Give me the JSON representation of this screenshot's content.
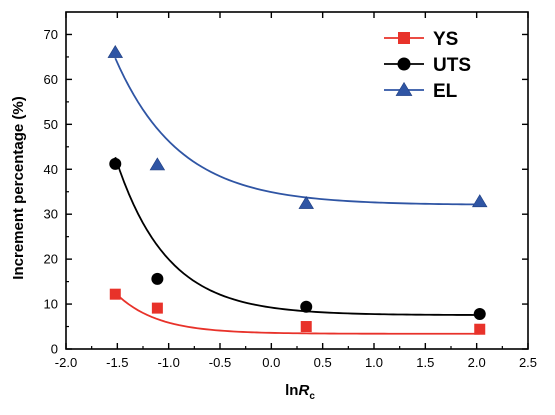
{
  "chart_data": {
    "type": "scatter",
    "title": "",
    "xlabel": {
      "prefix": "ln",
      "main": "R",
      "sub": "c"
    },
    "ylabel": "Increment percentage (%)",
    "xlim": [
      -2.0,
      2.5
    ],
    "ylim": [
      0,
      75
    ],
    "x_ticks": [
      "-2.0",
      "-1.5",
      "-1.0",
      "-0.5",
      "0.0",
      "0.5",
      "1.0",
      "1.5",
      "2.0",
      "2.5"
    ],
    "y_ticks": [
      "0",
      "10",
      "20",
      "30",
      "40",
      "50",
      "60",
      "70"
    ],
    "grid": false,
    "legend_position": "top-right",
    "series": [
      {
        "name": "YS",
        "color": "#e8322a",
        "marker": "square",
        "x": [
          -1.52,
          -1.11,
          0.34,
          2.03
        ],
        "y": [
          12.2,
          9.1,
          5.0,
          4.4
        ],
        "fit": [
          9.1,
          2.5,
          3.39
        ]
      },
      {
        "name": "UTS",
        "color": "#000000",
        "marker": "circle",
        "x": [
          -1.52,
          -1.11,
          0.34,
          2.03
        ],
        "y": [
          41.2,
          15.6,
          9.4,
          7.8
        ],
        "fit": [
          35.14,
          2.0,
          7.54
        ]
      },
      {
        "name": "EL",
        "color": "#2f55a4",
        "marker": "triangle",
        "x": [
          -1.52,
          -1.11,
          0.34,
          2.03
        ],
        "y": [
          66.0,
          41.0,
          32.4,
          32.8
        ],
        "fit": [
          32.67,
          1.6,
          32.05
        ]
      }
    ]
  }
}
